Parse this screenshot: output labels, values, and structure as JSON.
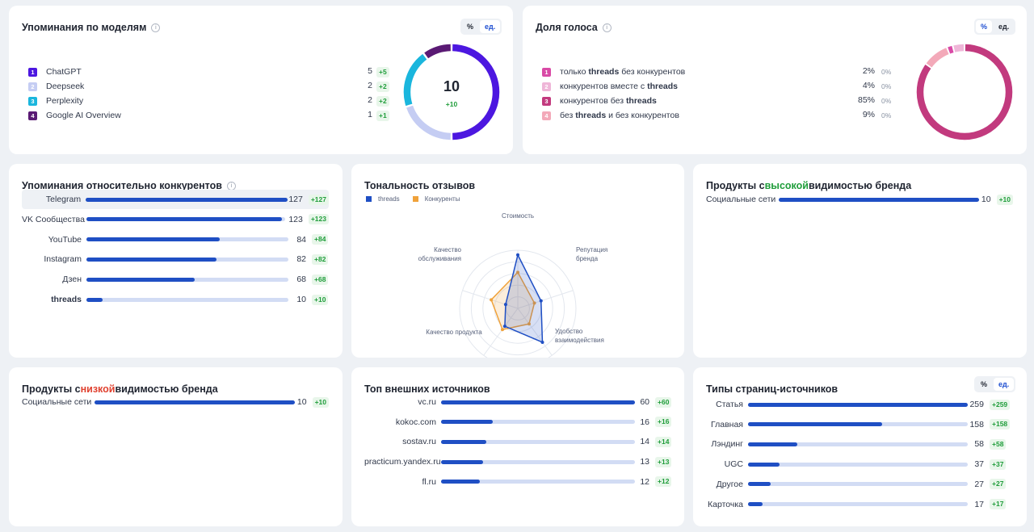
{
  "colors": {
    "accent": "#1f4fc4",
    "positive": "#1f9d3a",
    "negative": "#e0412f",
    "track": "#d2dcf4"
  },
  "models_card": {
    "title": "Упоминания по моделям",
    "toggle": [
      "%",
      "ед."
    ],
    "toggle_active": 1,
    "center_value": "10",
    "center_delta": "+10",
    "items": [
      {
        "rank": "1",
        "name": "ChatGPT",
        "value": 5,
        "value_text": "5",
        "delta": "+5",
        "color": "#4c17e0"
      },
      {
        "rank": "2",
        "name": "Deepseek",
        "value": 2,
        "value_text": "2",
        "delta": "+2",
        "color": "#c5cdf3"
      },
      {
        "rank": "3",
        "name": "Perplexity",
        "value": 2,
        "value_text": "2",
        "delta": "+2",
        "color": "#1ab6dd"
      },
      {
        "rank": "4",
        "name": "Google AI Overview",
        "value": 1,
        "value_text": "1",
        "delta": "+1",
        "color": "#5a1a74"
      }
    ]
  },
  "voice_card": {
    "title": "Доля голоса",
    "toggle": [
      "%",
      "ед."
    ],
    "toggle_active": 0,
    "items": [
      {
        "rank": "1",
        "parts": [
          [
            "только ",
            false
          ],
          [
            "threads",
            true
          ],
          [
            " без конкурентов",
            false
          ]
        ],
        "value": 2,
        "value_text": "2%",
        "delta": "0%",
        "color": "#d94aa6"
      },
      {
        "rank": "2",
        "parts": [
          [
            "конкурентов вместе с ",
            false
          ],
          [
            "threads",
            true
          ]
        ],
        "value": 4,
        "value_text": "4%",
        "delta": "0%",
        "color": "#efb6d8"
      },
      {
        "rank": "3",
        "parts": [
          [
            "конкурентов без ",
            false
          ],
          [
            "threads",
            true
          ]
        ],
        "value": 85,
        "value_text": "85%",
        "delta": "0%",
        "color": "#c23a7e"
      },
      {
        "rank": "4",
        "parts": [
          [
            "без ",
            false
          ],
          [
            "threads",
            true
          ],
          [
            " и без конкурентов",
            false
          ]
        ],
        "value": 9,
        "value_text": "9%",
        "delta": "0%",
        "color": "#f3a9b9"
      }
    ]
  },
  "competitors_card": {
    "title": "Упоминания относительно конкурентов",
    "max": 127,
    "rows": [
      {
        "label": "Telegram",
        "value": 127,
        "value_text": "127",
        "delta": "+127",
        "highlight": true,
        "bold": false
      },
      {
        "label": "VK Сообщества",
        "value": 123,
        "value_text": "123",
        "delta": "+123",
        "highlight": false,
        "bold": false
      },
      {
        "label": "YouTube",
        "value": 84,
        "value_text": "84",
        "delta": "+84",
        "highlight": false,
        "bold": false
      },
      {
        "label": "Instagram",
        "value": 82,
        "value_text": "82",
        "delta": "+82",
        "highlight": false,
        "bold": false
      },
      {
        "label": "Дзен",
        "value": 68,
        "value_text": "68",
        "delta": "+68",
        "highlight": false,
        "bold": false
      },
      {
        "label": "threads",
        "value": 10,
        "value_text": "10",
        "delta": "+10",
        "highlight": false,
        "bold": true
      }
    ]
  },
  "sentiment_card": {
    "title": "Тональность отзывов",
    "legend": [
      {
        "name": "threads",
        "color": "#1f4fc4"
      },
      {
        "name": "Конкуренты",
        "color": "#f0a23a"
      }
    ],
    "axes": [
      [
        "Стоимость"
      ],
      [
        "Репутация",
        "бренда"
      ],
      [
        "Удобство",
        "взаимодействия"
      ],
      [
        "Качество продукта"
      ],
      [
        "Качество",
        "обслуживания"
      ]
    ],
    "threads_values": [
      0.92,
      0.42,
      0.72,
      0.38,
      0.22
    ],
    "competitor_values": [
      0.62,
      0.3,
      0.33,
      0.45,
      0.48
    ]
  },
  "high_card": {
    "title_parts": [
      [
        "Продукты с ",
        ""
      ],
      [
        "высокой",
        "green"
      ],
      [
        " видимостью бренда",
        ""
      ]
    ],
    "max": 10,
    "rows": [
      {
        "label": "Социальные сети",
        "value": 10,
        "value_text": "10",
        "delta": "+10"
      }
    ]
  },
  "low_card": {
    "title_parts": [
      [
        "Продукты с ",
        ""
      ],
      [
        "низкой",
        "red"
      ],
      [
        " видимостью бренда",
        ""
      ]
    ],
    "max": 10,
    "rows": [
      {
        "label": "Социальные сети",
        "value": 10,
        "value_text": "10",
        "delta": "+10"
      }
    ]
  },
  "sources_card": {
    "title": "Топ внешних источников",
    "max": 60,
    "rows": [
      {
        "label": "vc.ru",
        "value": 60,
        "value_text": "60",
        "delta": "+60"
      },
      {
        "label": "kokoc.com",
        "value": 16,
        "value_text": "16",
        "delta": "+16"
      },
      {
        "label": "sostav.ru",
        "value": 14,
        "value_text": "14",
        "delta": "+14"
      },
      {
        "label": "practicum.yandex.ru",
        "value": 13,
        "value_text": "13",
        "delta": "+13"
      },
      {
        "label": "fl.ru",
        "value": 12,
        "value_text": "12",
        "delta": "+12"
      }
    ]
  },
  "page_types_card": {
    "title": "Типы страниц-источников",
    "toggle": [
      "%",
      "ед."
    ],
    "toggle_active": 1,
    "max": 259,
    "rows": [
      {
        "label": "Статья",
        "value": 259,
        "value_text": "259",
        "delta": "+259"
      },
      {
        "label": "Главная",
        "value": 158,
        "value_text": "158",
        "delta": "+158"
      },
      {
        "label": "Лэндинг",
        "value": 58,
        "value_text": "58",
        "delta": "+58"
      },
      {
        "label": "UGC",
        "value": 37,
        "value_text": "37",
        "delta": "+37"
      },
      {
        "label": "Другое",
        "value": 27,
        "value_text": "27",
        "delta": "+27"
      },
      {
        "label": "Карточка",
        "value": 17,
        "value_text": "17",
        "delta": "+17"
      }
    ]
  }
}
